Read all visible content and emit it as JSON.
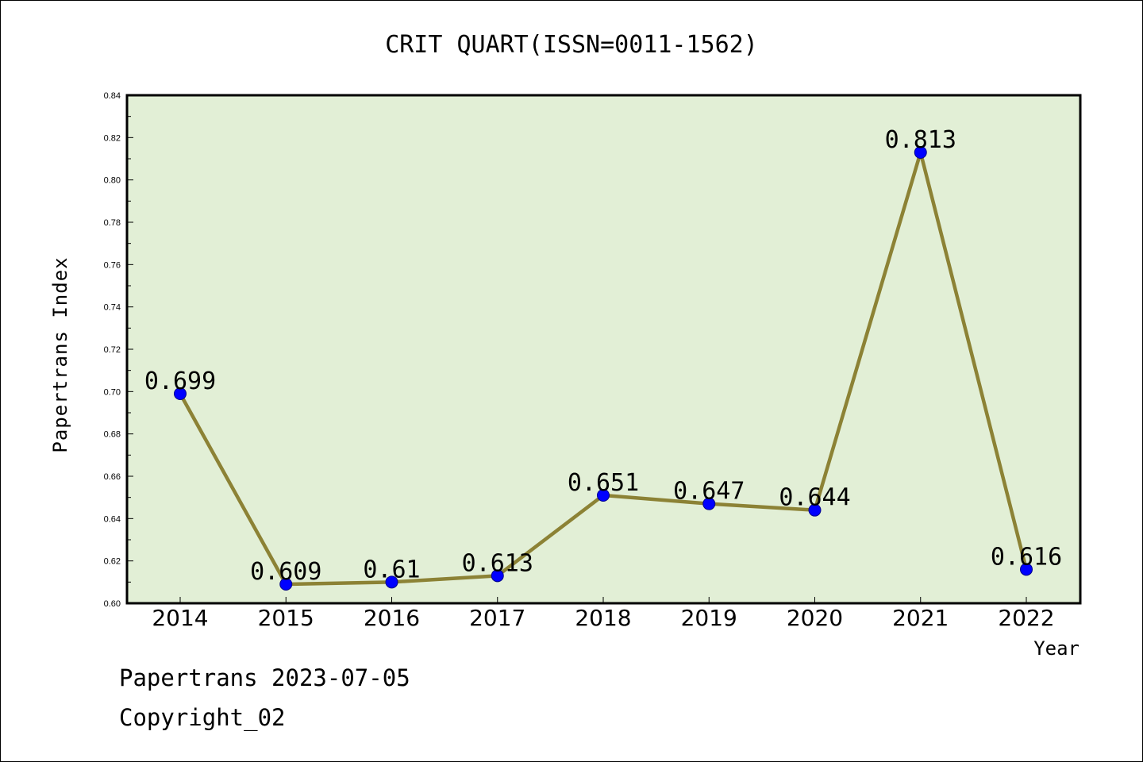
{
  "chart_data": {
    "type": "line",
    "title": "CRIT QUART(ISSN=0011-1562)",
    "xlabel": "Year",
    "ylabel": "Papertrans Index",
    "categories": [
      "2014",
      "2015",
      "2016",
      "2017",
      "2018",
      "2019",
      "2020",
      "2021",
      "2022"
    ],
    "values": [
      0.699,
      0.609,
      0.61,
      0.613,
      0.651,
      0.647,
      0.644,
      0.813,
      0.616
    ],
    "data_labels": [
      "0.699",
      "0.609",
      "0.61",
      "0.613",
      "0.651",
      "0.647",
      "0.644",
      "0.813",
      "0.616"
    ],
    "ylim": [
      0.6,
      0.84
    ],
    "yticks": [
      "0.60",
      "0.62",
      "0.64",
      "0.66",
      "0.68",
      "0.70",
      "0.72",
      "0.74",
      "0.76",
      "0.78",
      "0.80",
      "0.82",
      "0.84"
    ],
    "grid": false,
    "colors": {
      "plot_background": "#e2efd6",
      "line": "#8c8235",
      "marker": "#0000ff"
    }
  },
  "footer": {
    "line1": "Papertrans 2023-07-05",
    "line2": "Copyright_02"
  }
}
